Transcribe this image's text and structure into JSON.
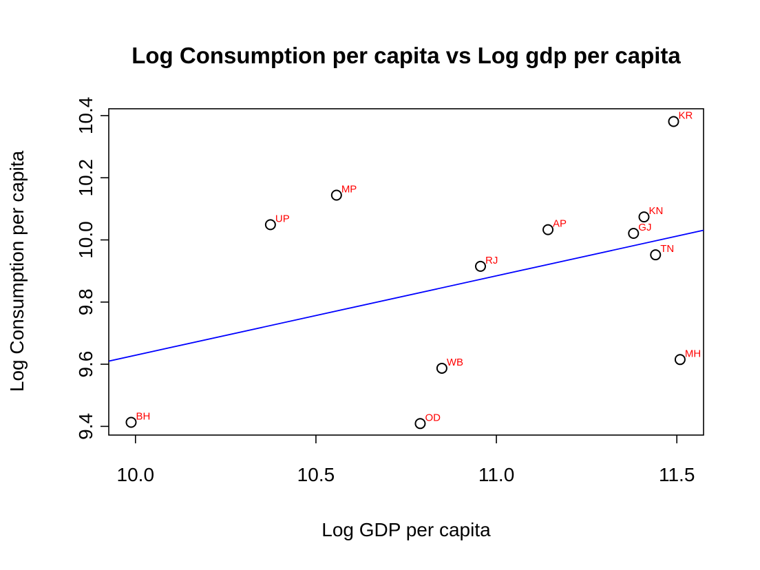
{
  "chart_data": {
    "type": "scatter",
    "title": "Log Consumption per capita vs Log gdp per capita",
    "xlabel": "Log GDP per capita",
    "ylabel": "Log Consumption per capita",
    "xlim": [
      9.926,
      11.574
    ],
    "ylim": [
      9.372,
      10.422
    ],
    "xticks": [
      10.0,
      10.5,
      11.0,
      11.5
    ],
    "xtick_labels": [
      "10.0",
      "10.5",
      "11.0",
      "11.5"
    ],
    "yticks": [
      9.4,
      9.6,
      9.8,
      10.0,
      10.2,
      10.4
    ],
    "ytick_labels": [
      "9.4",
      "9.6",
      "9.8",
      "10.0",
      "10.2",
      "10.4"
    ],
    "grid": false,
    "point_color": "#000000",
    "label_color": "#ff0000",
    "points": [
      {
        "label": "BH",
        "x": 9.988,
        "y": 9.413
      },
      {
        "label": "UP",
        "x": 10.374,
        "y": 10.049
      },
      {
        "label": "MP",
        "x": 10.557,
        "y": 10.144
      },
      {
        "label": "OD",
        "x": 10.789,
        "y": 9.409
      },
      {
        "label": "WB",
        "x": 10.849,
        "y": 9.587
      },
      {
        "label": "RJ",
        "x": 10.956,
        "y": 9.915
      },
      {
        "label": "AP",
        "x": 11.143,
        "y": 10.033
      },
      {
        "label": "GJ",
        "x": 11.38,
        "y": 10.021
      },
      {
        "label": "KN",
        "x": 11.409,
        "y": 10.074
      },
      {
        "label": "TN",
        "x": 11.441,
        "y": 9.952
      },
      {
        "label": "KR",
        "x": 11.491,
        "y": 10.381
      },
      {
        "label": "MH",
        "x": 11.509,
        "y": 9.615
      }
    ],
    "fit_line": {
      "color": "#0000ff",
      "points": [
        {
          "x": 9.926,
          "y": 9.61
        },
        {
          "x": 11.574,
          "y": 10.031
        }
      ]
    }
  }
}
